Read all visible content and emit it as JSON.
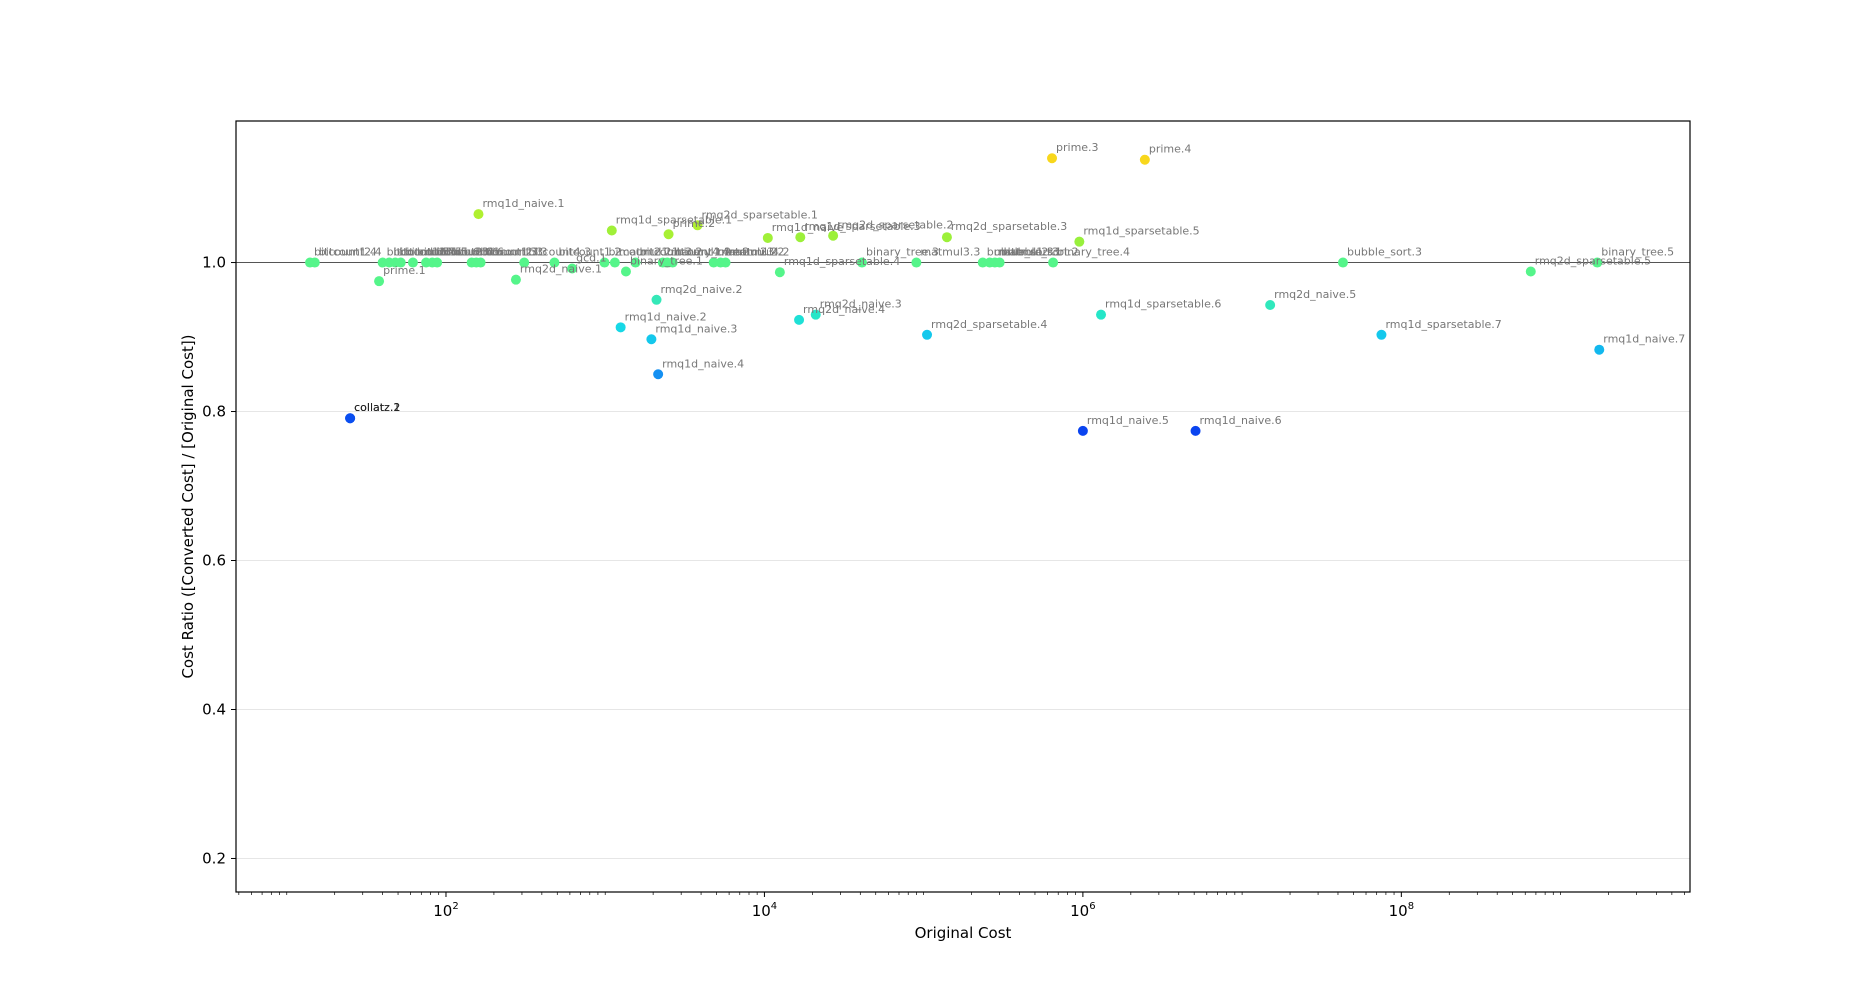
{
  "chart_data": {
    "type": "scatter",
    "title": "",
    "xlabel": "Original Cost",
    "ylabel": "Cost Ratio   ([Converted Cost] / [Original Cost])",
    "xscale": "log",
    "xlim": [
      4.8,
      6500000000.0
    ],
    "ylim": [
      0.155,
      1.19
    ],
    "yticks": [
      0.2,
      0.4,
      0.6,
      0.8,
      1.0
    ],
    "ytick_labels": [
      "0.2",
      "0.4",
      "0.6",
      "0.8",
      "1.0"
    ],
    "xticks": [
      100,
      10000,
      1000000,
      100000000
    ],
    "xtick_labels": [
      {
        "base": "10",
        "exp": "2"
      },
      {
        "base": "10",
        "exp": "4"
      },
      {
        "base": "10",
        "exp": "6"
      },
      {
        "base": "10",
        "exp": "8"
      }
    ],
    "grid": "horizontal",
    "reference_line": 1.0,
    "colormap": "ratio: blue (low) → cyan → green (1.0) → yellow (high)",
    "points": [
      {
        "label": "collatz.1",
        "x": 25,
        "y": 0.791,
        "color": "#0a4ef0"
      },
      {
        "label": "collatz.2",
        "x": 25,
        "y": 0.791,
        "color": "#0a4ef0"
      },
      {
        "label": "bitcount1.4",
        "x": 14,
        "y": 1.0,
        "color": "#55f58a"
      },
      {
        "label": "bitcount2.4",
        "x": 15,
        "y": 1.0,
        "color": "#55f58a"
      },
      {
        "label": "prime.1",
        "x": 38,
        "y": 0.975,
        "color": "#55f58a"
      },
      {
        "label": "bitcount1.5",
        "x": 40,
        "y": 1.0,
        "color": "#55f58a"
      },
      {
        "label": "bitcount2.5",
        "x": 44,
        "y": 1.0,
        "color": "#55f58a"
      },
      {
        "label": "bitcount3.5",
        "x": 48,
        "y": 1.0,
        "color": "#55f58a"
      },
      {
        "label": "bitcount4.5",
        "x": 52,
        "y": 1.0,
        "color": "#55f58a"
      },
      {
        "label": "bitcount1.6",
        "x": 62,
        "y": 1.0,
        "color": "#55f58a"
      },
      {
        "label": "bitcount2.6",
        "x": 75,
        "y": 1.0,
        "color": "#55f58a"
      },
      {
        "label": "bitcount3.6",
        "x": 82,
        "y": 1.0,
        "color": "#55f58a"
      },
      {
        "label": "bitcount4.6",
        "x": 88,
        "y": 1.0,
        "color": "#55f58a"
      },
      {
        "label": "bitcount1.3",
        "x": 145,
        "y": 1.0,
        "color": "#55f58a"
      },
      {
        "label": "bitcount2.3",
        "x": 155,
        "y": 1.0,
        "color": "#55f58a"
      },
      {
        "label": "bitcount3.3",
        "x": 165,
        "y": 1.0,
        "color": "#55f58a"
      },
      {
        "label": "rmq1d_naive.1",
        "x": 160,
        "y": 1.065,
        "color": "#b0f030"
      },
      {
        "label": "rmq2d_naive.1",
        "x": 275,
        "y": 0.977,
        "color": "#55f58a"
      },
      {
        "label": "bitcount4.3",
        "x": 310,
        "y": 1.0,
        "color": "#55f58a"
      },
      {
        "label": "bitcount1.2",
        "x": 480,
        "y": 1.0,
        "color": "#55f58a"
      },
      {
        "label": "gcd.1",
        "x": 620,
        "y": 0.992,
        "color": "#55f58a"
      },
      {
        "label": "bitcount2.2",
        "x": 990,
        "y": 1.0,
        "color": "#55f58a"
      },
      {
        "label": "rmq1d_sparsetable.1",
        "x": 1100,
        "y": 1.043,
        "color": "#a0f038"
      },
      {
        "label": "matmul1.1",
        "x": 1150,
        "y": 1.0,
        "color": "#55f58a"
      },
      {
        "label": "rmq1d_naive.2",
        "x": 1250,
        "y": 0.913,
        "color": "#17d8e6"
      },
      {
        "label": "binary_tree.1",
        "x": 1350,
        "y": 0.988,
        "color": "#55f58a"
      },
      {
        "label": "bitcount3.2",
        "x": 1550,
        "y": 1.0,
        "color": "#55f58a"
      },
      {
        "label": "rmq1d_naive.3",
        "x": 1950,
        "y": 0.897,
        "color": "#14c8ec"
      },
      {
        "label": "rmq2d_naive.2",
        "x": 2100,
        "y": 0.95,
        "color": "#35e8b8"
      },
      {
        "label": "rmq1d_naive.4",
        "x": 2150,
        "y": 0.85,
        "color": "#1490f2"
      },
      {
        "label": "bitcount4.4",
        "x": 2300,
        "y": 1.0,
        "color": "#55f58a"
      },
      {
        "label": "matmul1.2",
        "x": 2450,
        "y": 1.0,
        "color": "#55f58a"
      },
      {
        "label": "prime.2",
        "x": 2500,
        "y": 1.038,
        "color": "#a8f034"
      },
      {
        "label": "binary_tree.2",
        "x": 2650,
        "y": 1.0,
        "color": "#55f58a"
      },
      {
        "label": "rmq2d_sparsetable.1",
        "x": 3800,
        "y": 1.05,
        "color": "#b0f030"
      },
      {
        "label": "matmul2.2",
        "x": 4800,
        "y": 1.0,
        "color": "#55f58a"
      },
      {
        "label": "matmul3.2",
        "x": 5300,
        "y": 1.0,
        "color": "#55f58a"
      },
      {
        "label": "matmul4.2",
        "x": 5700,
        "y": 1.0,
        "color": "#55f58a"
      },
      {
        "label": "rmq1d_naive",
        "x": 10500,
        "y": 1.033,
        "color": "#a0f038"
      },
      {
        "label": "rmq1d_sparsetable.4",
        "x": 12500,
        "y": 0.987,
        "color": "#55f58a"
      },
      {
        "label": "rmq2d_naive.4",
        "x": 16500,
        "y": 0.923,
        "color": "#1ee0d6"
      },
      {
        "label": "rmq1d_sparsetable.3",
        "x": 16800,
        "y": 1.034,
        "color": "#9cf03a"
      },
      {
        "label": "rmq2d_naive.3",
        "x": 21000,
        "y": 0.93,
        "color": "#25e6c8"
      },
      {
        "label": "rmq2d_sparsetable.2",
        "x": 27000,
        "y": 1.036,
        "color": "#9cf03a"
      },
      {
        "label": "binary_tree.3",
        "x": 41000,
        "y": 1.0,
        "color": "#55f58a"
      },
      {
        "label": "rmq2d_sparsetable.4",
        "x": 105000,
        "y": 0.903,
        "color": "#14c8ec"
      },
      {
        "label": "matmul3.3",
        "x": 90000,
        "y": 1.0,
        "color": "#55f58a"
      },
      {
        "label": "rmq2d_sparsetable.3",
        "x": 140000,
        "y": 1.034,
        "color": "#9cf03a"
      },
      {
        "label": "bubble_sort.1",
        "x": 235000,
        "y": 1.0,
        "color": "#55f58a"
      },
      {
        "label": "matmul1.3",
        "x": 260000,
        "y": 1.0,
        "color": "#55f58a"
      },
      {
        "label": "matmul2.3",
        "x": 280000,
        "y": 1.0,
        "color": "#55f58a"
      },
      {
        "label": "bubble_sort.2",
        "x": 300000,
        "y": 1.0,
        "color": "#55f58a"
      },
      {
        "label": "prime.3",
        "x": 640000,
        "y": 1.14,
        "color": "#f8d71c"
      },
      {
        "label": "binary_tree.4",
        "x": 650000,
        "y": 1.0,
        "color": "#55f58a"
      },
      {
        "label": "rmq1d_sparsetable.5",
        "x": 950000,
        "y": 1.028,
        "color": "#98f03c"
      },
      {
        "label": "rmq1d_naive.5",
        "x": 1000000,
        "y": 0.774,
        "color": "#0a44f0"
      },
      {
        "label": "rmq1d_sparsetable.6",
        "x": 1300000,
        "y": 0.93,
        "color": "#25e6c8"
      },
      {
        "label": "prime.4",
        "x": 2450000,
        "y": 1.138,
        "color": "#f8d71c"
      },
      {
        "label": "rmq1d_naive.6",
        "x": 5100000,
        "y": 0.774,
        "color": "#0a44f0"
      },
      {
        "label": "rmq2d_naive.5",
        "x": 15000000,
        "y": 0.943,
        "color": "#30e8bc"
      },
      {
        "label": "bubble_sort.3",
        "x": 43000000,
        "y": 1.0,
        "color": "#55f58a"
      },
      {
        "label": "rmq1d_sparsetable.7",
        "x": 75000000,
        "y": 0.903,
        "color": "#14c8ec"
      },
      {
        "label": "rmq2d_sparsetable.5",
        "x": 650000000,
        "y": 0.988,
        "color": "#55f58a"
      },
      {
        "label": "binary_tree.5",
        "x": 1700000000,
        "y": 1.0,
        "color": "#55f58a"
      },
      {
        "label": "rmq1d_naive.7",
        "x": 1750000000,
        "y": 0.883,
        "color": "#12b8ee"
      }
    ]
  }
}
